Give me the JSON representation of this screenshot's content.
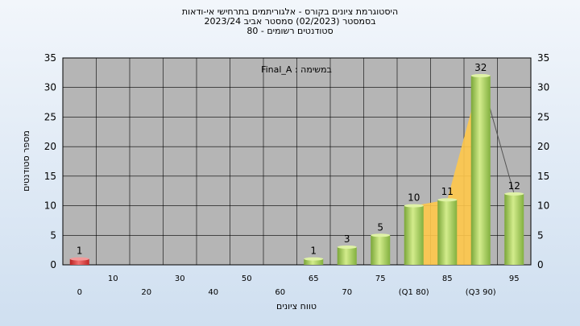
{
  "chart_data": {
    "type": "bar",
    "title_lines": [
      "היסטוגרמת ציונים בקורס - אלגוריתמים בתרחישי אי-ודאות",
      "בסמסטר  (02/2023)  סמסטר אביב 2023/24",
      "סטודנטים רשומים - 80"
    ],
    "ylabel": "מספר סטודנטים",
    "xlabel": "טווח ציונים",
    "annotation": "במשימה : Final_A",
    "ylim": [
      0,
      35
    ],
    "yticks": [
      0,
      5,
      10,
      15,
      20,
      25,
      30,
      35
    ],
    "categories": [
      "0",
      "10",
      "20",
      "30",
      "40",
      "50",
      "60",
      "65",
      "70",
      "75",
      "(Q1 80)",
      "85",
      "(Q3 90)",
      "95"
    ],
    "values": [
      1,
      0,
      0,
      0,
      0,
      0,
      0,
      1,
      3,
      5,
      10,
      11,
      32,
      12
    ],
    "value_labels": [
      "1",
      "",
      "",
      "",
      "",
      "",
      "",
      "1",
      "3",
      "5",
      "10",
      "11",
      "32",
      "12"
    ],
    "highlight_categories": [
      "0"
    ],
    "colors": {
      "bar": "#9dc65a",
      "bar_highlight": "#d93535",
      "plot_bg": "#b5b5b5",
      "area": "#ffc84a",
      "grid": "#000000"
    }
  }
}
